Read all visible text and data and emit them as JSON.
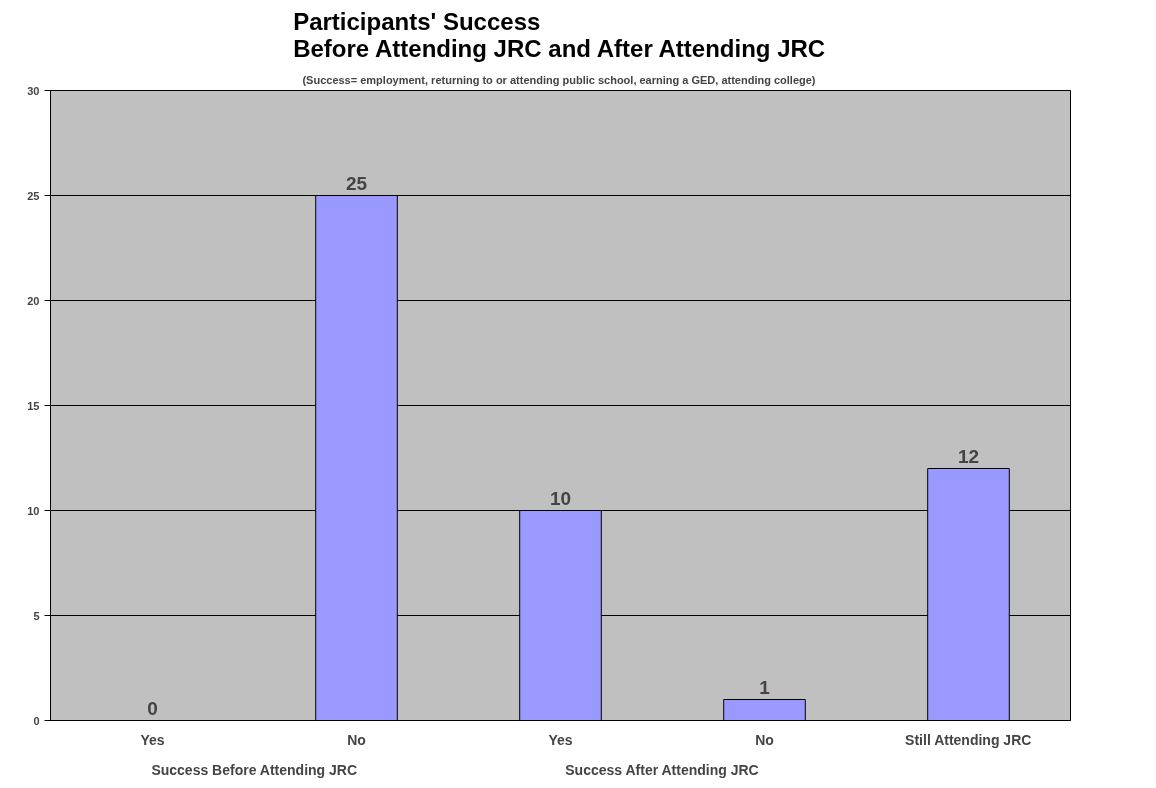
{
  "chart_data": {
    "type": "bar",
    "title": "Participants' Success\nBefore Attending JRC and After Attending JRC",
    "subtitle": "(Success=  employment, returning to or attending public school, earning a GED, attending college)",
    "categories": [
      "Yes",
      "No",
      "Yes",
      "No",
      "Still Attending JRC"
    ],
    "values": [
      0,
      25,
      10,
      1,
      12
    ],
    "color": "#9999ff",
    "annotations": [
      "Success Before Attending JRC",
      "Success After Attending JRC"
    ],
    "ylim": [
      0,
      30
    ],
    "yticks": [
      0,
      5,
      10,
      15,
      20,
      25,
      30
    ],
    "grid": "y",
    "data_labels": true
  }
}
